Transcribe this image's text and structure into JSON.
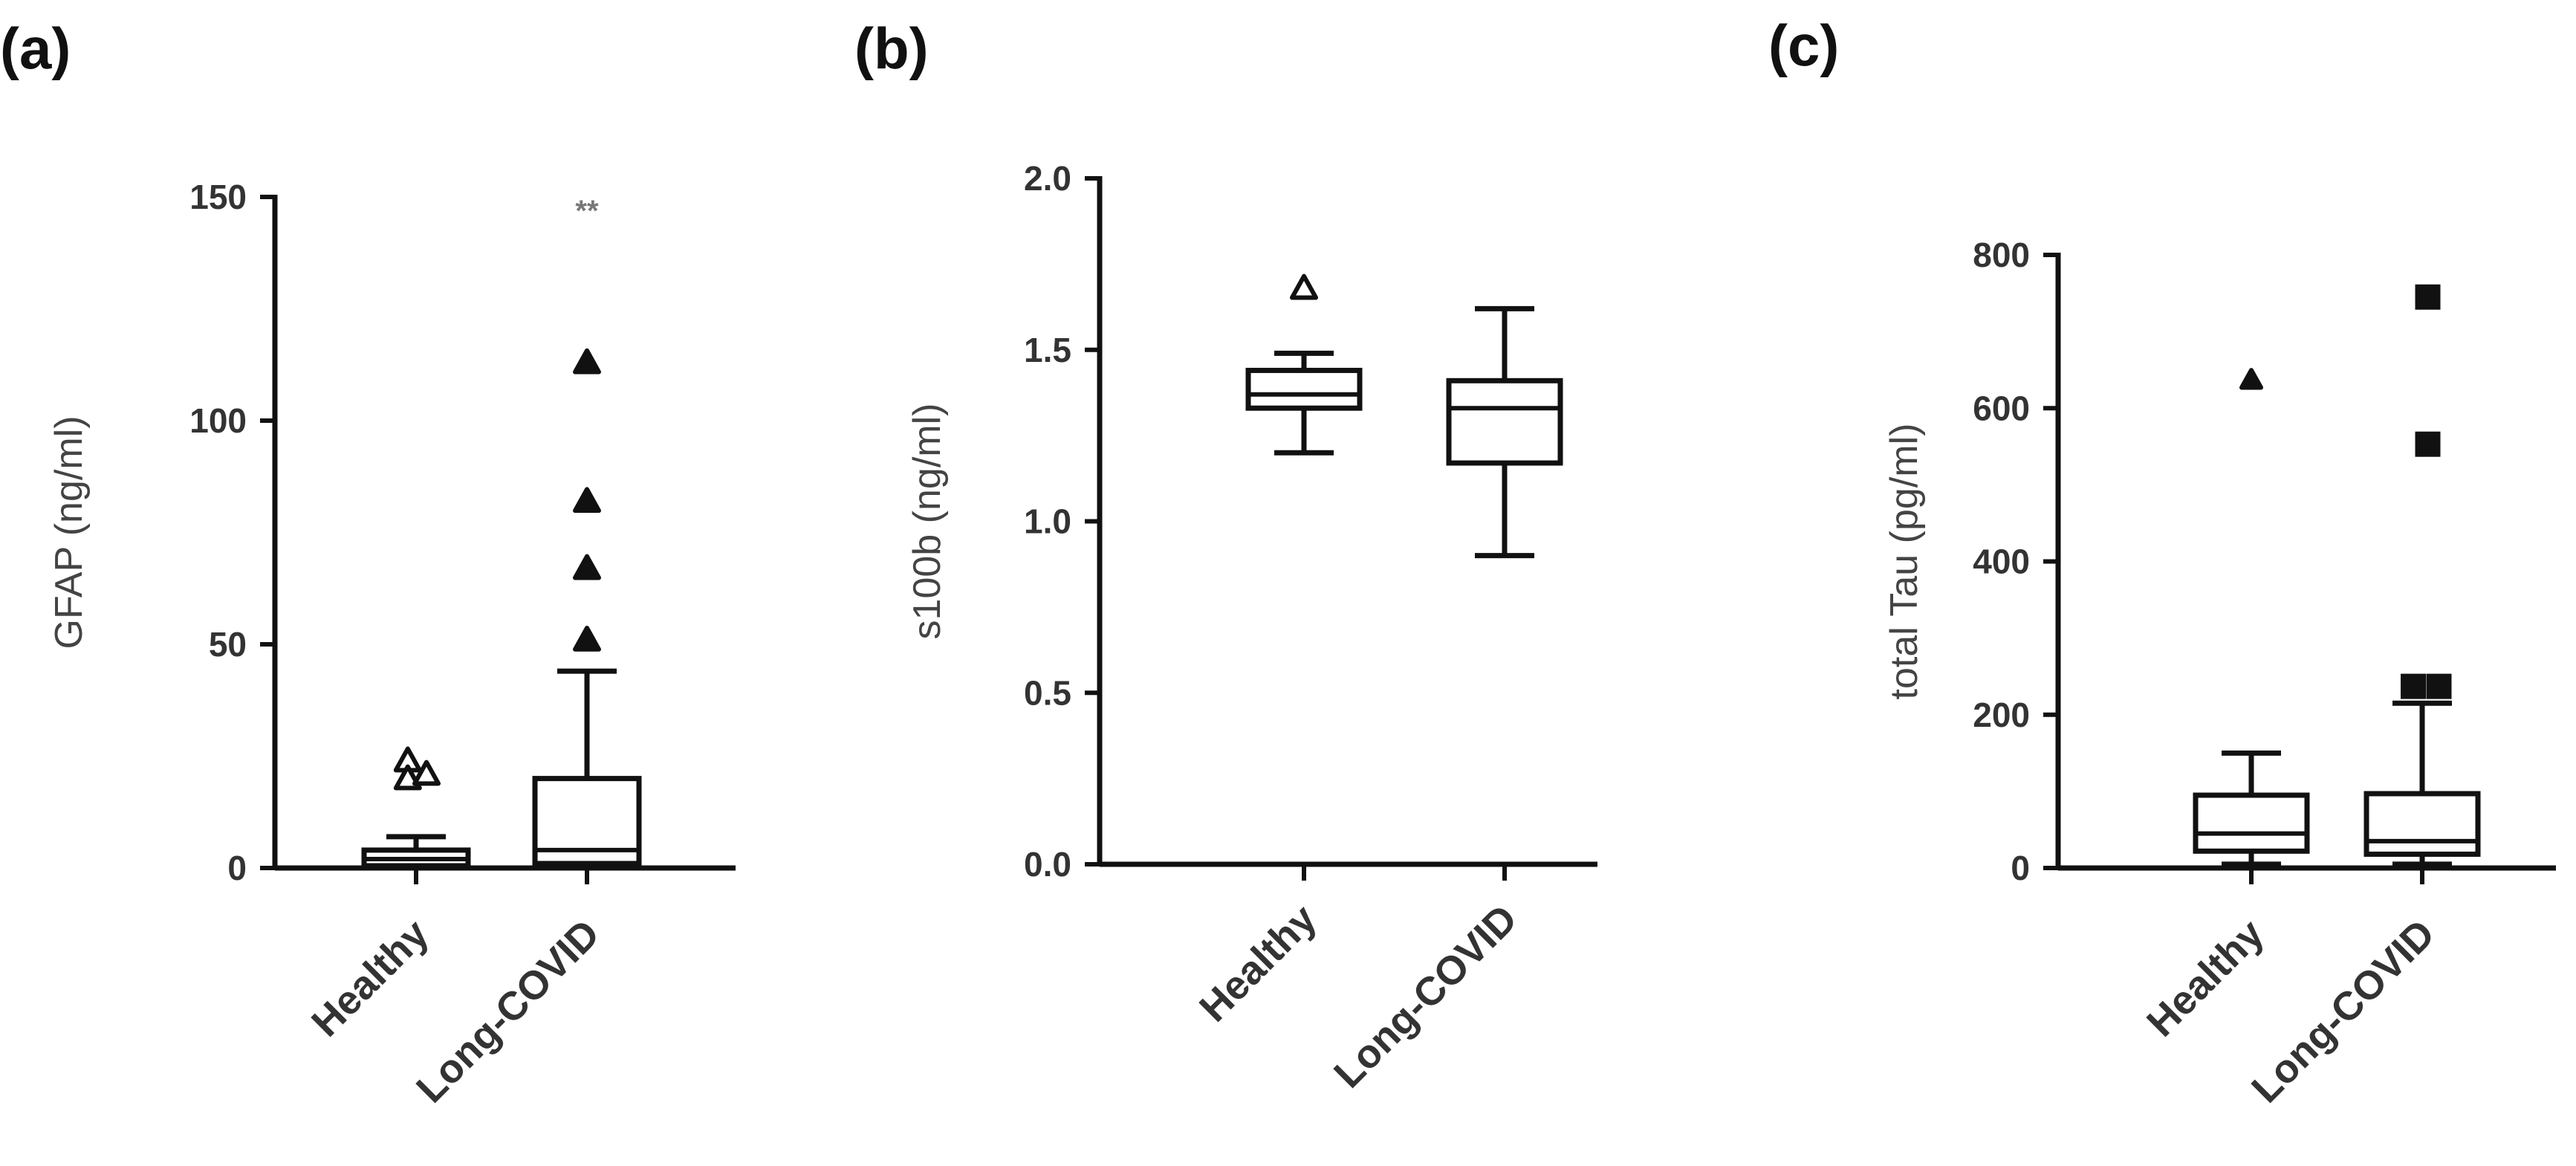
{
  "chart_data": [
    {
      "type": "box",
      "panel_label": "(a)",
      "ylabel": "GFAP (ng/ml)",
      "ylim": [
        0,
        150
      ],
      "yticks": [
        0,
        50,
        100,
        150
      ],
      "categories": [
        "Healthy",
        "Long-COVID"
      ],
      "boxes": [
        {
          "category": "Healthy",
          "whisker_low": 0,
          "q1": 0.5,
          "median": 2,
          "q3": 4,
          "whisker_high": 7,
          "outliers": [
            {
              "x": -0.08,
              "y": 24
            },
            {
              "x": -0.08,
              "y": 20
            },
            {
              "x": 0.1,
              "y": 21
            }
          ],
          "marker": "triangle-open"
        },
        {
          "category": "Long-COVID",
          "whisker_low": 0,
          "q1": 1,
          "median": 4,
          "q3": 20,
          "whisker_high": 44,
          "outliers": [
            {
              "x": 0,
              "y": 113
            },
            {
              "x": 0,
              "y": 82
            },
            {
              "x": 0,
              "y": 67
            },
            {
              "x": 0,
              "y": 51
            }
          ],
          "marker": "triangle-filled"
        }
      ],
      "annotations": [
        {
          "category": "Long-COVID",
          "y": 147,
          "text": "**"
        }
      ]
    },
    {
      "type": "box",
      "panel_label": "(b)",
      "ylabel": "s100b (ng/ml)",
      "ylim": [
        0,
        2.0
      ],
      "yticks": [
        0.0,
        0.5,
        1.0,
        1.5,
        2.0
      ],
      "categories": [
        "Healthy",
        "Long-COVID"
      ],
      "boxes": [
        {
          "category": "Healthy",
          "whisker_low": 1.2,
          "q1": 1.33,
          "median": 1.37,
          "q3": 1.44,
          "whisker_high": 1.49,
          "outliers": [
            {
              "x": 0,
              "y": 1.68
            }
          ],
          "marker": "triangle-open"
        },
        {
          "category": "Long-COVID",
          "whisker_low": 0.9,
          "q1": 1.17,
          "median": 1.33,
          "q3": 1.41,
          "whisker_high": 1.62,
          "outliers": [],
          "marker": "none"
        }
      ]
    },
    {
      "type": "box",
      "panel_label": "(c)",
      "ylabel": "total Tau (pg/ml)",
      "ylim": [
        0,
        800
      ],
      "yticks": [
        0,
        200,
        400,
        600,
        800
      ],
      "categories": [
        "Healthy",
        "Long-COVID"
      ],
      "boxes": [
        {
          "category": "Healthy",
          "whisker_low": 5,
          "q1": 22,
          "median": 45,
          "q3": 95,
          "whisker_high": 150,
          "outliers": [
            {
              "x": 0,
              "y": 637
            }
          ],
          "marker": "triangle-filled-small"
        },
        {
          "category": "Long-COVID",
          "whisker_low": 5,
          "q1": 18,
          "median": 35,
          "q3": 97,
          "whisker_high": 215,
          "outliers": [
            {
              "x": 0.05,
              "y": 745
            },
            {
              "x": 0.05,
              "y": 553
            },
            {
              "x": -0.08,
              "y": 237
            },
            {
              "x": 0.15,
              "y": 237
            }
          ],
          "marker": "square-filled"
        }
      ]
    }
  ]
}
